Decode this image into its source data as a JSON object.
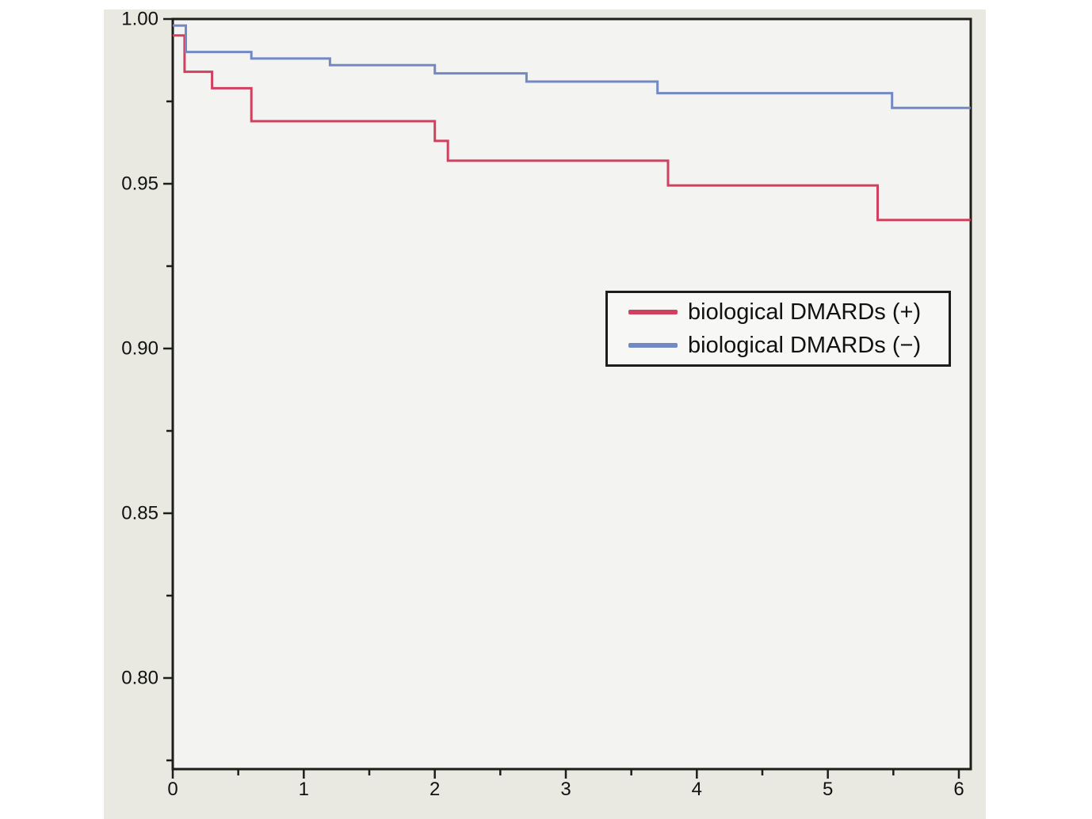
{
  "figure": {
    "background": "#e9e9e2",
    "plot_background": "#f3f3f1",
    "legend_background": "#f7f7f5",
    "border_color": "#1d1d1b",
    "tick_label_color": "#111111"
  },
  "chart_data": {
    "type": "line",
    "subtype": "kaplan-meier-step",
    "title": "",
    "xlabel": "",
    "ylabel": "",
    "xlim": [
      0,
      6.09
    ],
    "ylim": [
      0.7724,
      1.0
    ],
    "grid": false,
    "legend_position": "center-right",
    "xticks": {
      "major": [
        0,
        1,
        2,
        3,
        4,
        5,
        6
      ],
      "labels": [
        "0",
        "1",
        "2",
        "3",
        "4",
        "5",
        "6"
      ],
      "minor": [
        0.5,
        1.5,
        2.5,
        3.5,
        4.5,
        5.5
      ]
    },
    "yticks": {
      "major": [
        1.0,
        0.95,
        0.9,
        0.85,
        0.8
      ],
      "labels": [
        "1.00",
        "0.95",
        "0.90",
        "0.85",
        "0.80"
      ],
      "minor": [
        0.975,
        0.925,
        0.875,
        0.825,
        0.775
      ]
    },
    "series": [
      {
        "name": "biological DMARDs (+)",
        "color": "#d04160",
        "x_end": 6.09,
        "steps": [
          [
            0,
            0.995
          ],
          [
            0.09,
            0.984
          ],
          [
            0.3,
            0.979
          ],
          [
            0.6,
            0.969
          ],
          [
            2.0,
            0.963
          ],
          [
            2.1,
            0.957
          ],
          [
            3.78,
            0.9495
          ],
          [
            5.38,
            0.939
          ]
        ]
      },
      {
        "name": "biological DMARDs (−)",
        "color": "#7289c4",
        "x_end": 6.09,
        "steps": [
          [
            0,
            0.998
          ],
          [
            0.1,
            0.99
          ],
          [
            0.6,
            0.988
          ],
          [
            1.2,
            0.986
          ],
          [
            2.0,
            0.9835
          ],
          [
            2.7,
            0.981
          ],
          [
            3.7,
            0.9775
          ],
          [
            5.49,
            0.973
          ]
        ]
      }
    ]
  }
}
